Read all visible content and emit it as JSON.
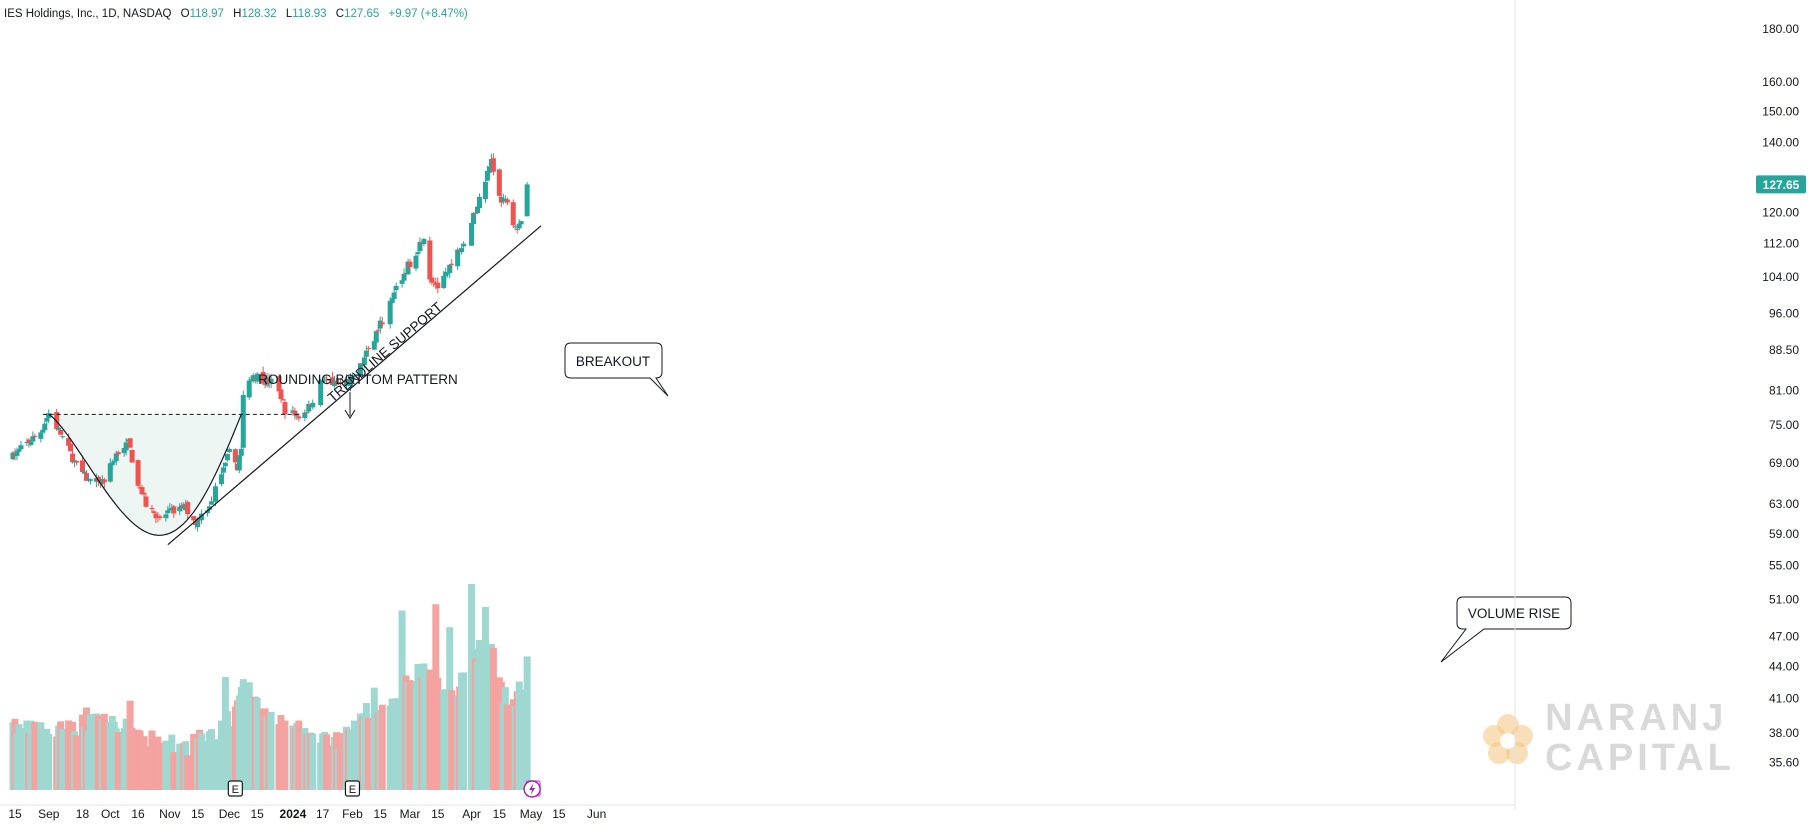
{
  "header": {
    "symbol": "IES Holdings, Inc., 1D, NASDAQ",
    "o_label": "O",
    "o_value": "118.97",
    "h_label": "H",
    "h_value": "128.32",
    "l_label": "L",
    "l_value": "118.93",
    "c_label": "C",
    "c_value": "127.65",
    "change": "+9.97 (+8.47%)"
  },
  "colors": {
    "up": "#26a69a",
    "down": "#ef5350",
    "vol_up": "#9fd8d1",
    "vol_down": "#f4a3a1",
    "text": "#131722",
    "axis_text": "#131722",
    "cup_fill": "#eef6f4",
    "badge": "#26a69a",
    "watermark": "#d9d9d9",
    "logo_accent": "#f2c57c",
    "earnings_future": "#e040fb",
    "dividend": "#9c27b0"
  },
  "chart_data": {
    "type": "candlestick",
    "title": "IES Holdings, Inc., 1D, NASDAQ",
    "y_scale": "log",
    "ylim": [
      33.5,
      186
    ],
    "y_ticks": [
      "180.00",
      "160.00",
      "150.00",
      "140.00",
      "120.00",
      "112.00",
      "104.00",
      "96.00",
      "88.50",
      "81.00",
      "75.00",
      "69.00",
      "63.00",
      "59.00",
      "55.00",
      "51.00",
      "47.00",
      "44.00",
      "41.00",
      "38.00",
      "35.60"
    ],
    "x_tick_labels": [
      "15",
      "Sep",
      "18",
      "Oct",
      "16",
      "Nov",
      "15",
      "Dec",
      "15",
      "2024",
      "17",
      "Feb",
      "15",
      "Mar",
      "15",
      "Apr",
      "15",
      "May",
      "15",
      "Jun"
    ],
    "x_tick_dates": [
      "2023-08-15",
      "2023-09-01",
      "2023-09-18",
      "2023-10-02",
      "2023-10-16",
      "2023-11-01",
      "2023-11-15",
      "2023-12-01",
      "2023-12-15",
      "2024-01-02",
      "2024-01-17",
      "2024-02-01",
      "2024-02-15",
      "2024-03-01",
      "2024-03-15",
      "2024-04-01",
      "2024-04-15",
      "2024-05-01",
      "2024-05-15",
      "2024-06-03"
    ],
    "last_price": "127.65",
    "anchors": [
      [
        "2023-08-14",
        70
      ],
      [
        "2023-08-28",
        74
      ],
      [
        "2023-09-01",
        77
      ],
      [
        "2023-09-08",
        73
      ],
      [
        "2023-09-15",
        68.5
      ],
      [
        "2023-09-22",
        66
      ],
      [
        "2023-09-29",
        66.5
      ],
      [
        "2023-10-06",
        71
      ],
      [
        "2023-10-11",
        72
      ],
      [
        "2023-10-16",
        66
      ],
      [
        "2023-10-20",
        63
      ],
      [
        "2023-10-27",
        61
      ],
      [
        "2023-11-02",
        62
      ],
      [
        "2023-11-09",
        62.5
      ],
      [
        "2023-11-14",
        60.5
      ],
      [
        "2023-11-21",
        63
      ],
      [
        "2023-11-28",
        68
      ],
      [
        "2023-11-30",
        71
      ],
      [
        "2023-12-05",
        68.5
      ],
      [
        "2023-12-07",
        71
      ],
      [
        "2023-12-08",
        80
      ],
      [
        "2023-12-13",
        84
      ],
      [
        "2023-12-18",
        83
      ],
      [
        "2023-12-22",
        82.5
      ],
      [
        "2023-12-27",
        80
      ],
      [
        "2023-12-29",
        77.5
      ],
      [
        "2024-01-05",
        76.5
      ],
      [
        "2024-01-10",
        78
      ],
      [
        "2024-01-17",
        83
      ],
      [
        "2024-01-24",
        82
      ],
      [
        "2024-02-01",
        83
      ],
      [
        "2024-02-06",
        86
      ],
      [
        "2024-02-13",
        92
      ],
      [
        "2024-02-20",
        98
      ],
      [
        "2024-02-26",
        104
      ],
      [
        "2024-03-04",
        110
      ],
      [
        "2024-03-08",
        114
      ],
      [
        "2024-03-11",
        104
      ],
      [
        "2024-03-15",
        102
      ],
      [
        "2024-03-21",
        106
      ],
      [
        "2024-03-28",
        113
      ],
      [
        "2024-04-04",
        122
      ],
      [
        "2024-04-11",
        135
      ],
      [
        "2024-04-15",
        124
      ],
      [
        "2024-04-19",
        122
      ],
      [
        "2024-04-24",
        115
      ],
      [
        "2024-04-26",
        118
      ],
      [
        "2024-04-29",
        127.65
      ]
    ],
    "volume_anchors": [
      [
        "2023-08-14",
        38.5
      ],
      [
        "2023-09-05",
        38
      ],
      [
        "2023-09-20",
        39
      ],
      [
        "2023-10-10",
        38.5
      ],
      [
        "2023-10-25",
        37.2
      ],
      [
        "2023-11-10",
        37
      ],
      [
        "2023-11-28",
        38.5
      ],
      [
        "2023-12-08",
        41.5
      ],
      [
        "2023-12-20",
        39.5
      ],
      [
        "2024-01-05",
        38.3
      ],
      [
        "2024-01-25",
        37.5
      ],
      [
        "2024-02-08",
        40
      ],
      [
        "2024-02-22",
        41.5
      ],
      [
        "2024-03-08",
        44
      ],
      [
        "2024-03-22",
        41
      ],
      [
        "2024-04-02",
        45
      ],
      [
        "2024-04-10",
        47
      ],
      [
        "2024-04-17",
        41.5
      ],
      [
        "2024-04-24",
        41
      ],
      [
        "2024-04-29",
        45
      ]
    ],
    "volume_spikes": [
      [
        "2023-08-15",
        39.2
      ],
      [
        "2023-09-04",
        39.3
      ],
      [
        "2023-09-20",
        40.2
      ],
      [
        "2023-10-12",
        40.8
      ],
      [
        "2023-11-29",
        43
      ],
      [
        "2023-12-08",
        42.8
      ],
      [
        "2023-12-11",
        42.5
      ],
      [
        "2024-02-12",
        42
      ],
      [
        "2024-02-26",
        49.8
      ],
      [
        "2024-03-14",
        50.5
      ],
      [
        "2024-03-21",
        48
      ],
      [
        "2024-04-01",
        52.8
      ],
      [
        "2024-04-08",
        50.2
      ],
      [
        "2024-04-29",
        45
      ]
    ],
    "series": [
      {
        "values": []
      }
    ],
    "annotations": [
      {
        "text": "ROUNDING BOTTOM PATTERN"
      },
      {
        "text": "BREAKOUT"
      },
      {
        "text": "TRENDLINE SUPPORT"
      },
      {
        "text": "VOLUME RISE"
      }
    ],
    "events": {
      "earnings_label": "E",
      "future_earnings_label": "E",
      "dividend_icon": "lightning-icon"
    },
    "resistance_level": 76.8
  },
  "watermark": {
    "line1": "NARANJ",
    "line2": "CAPITAL",
    "logo_icon": "lotus-logo-icon"
  }
}
